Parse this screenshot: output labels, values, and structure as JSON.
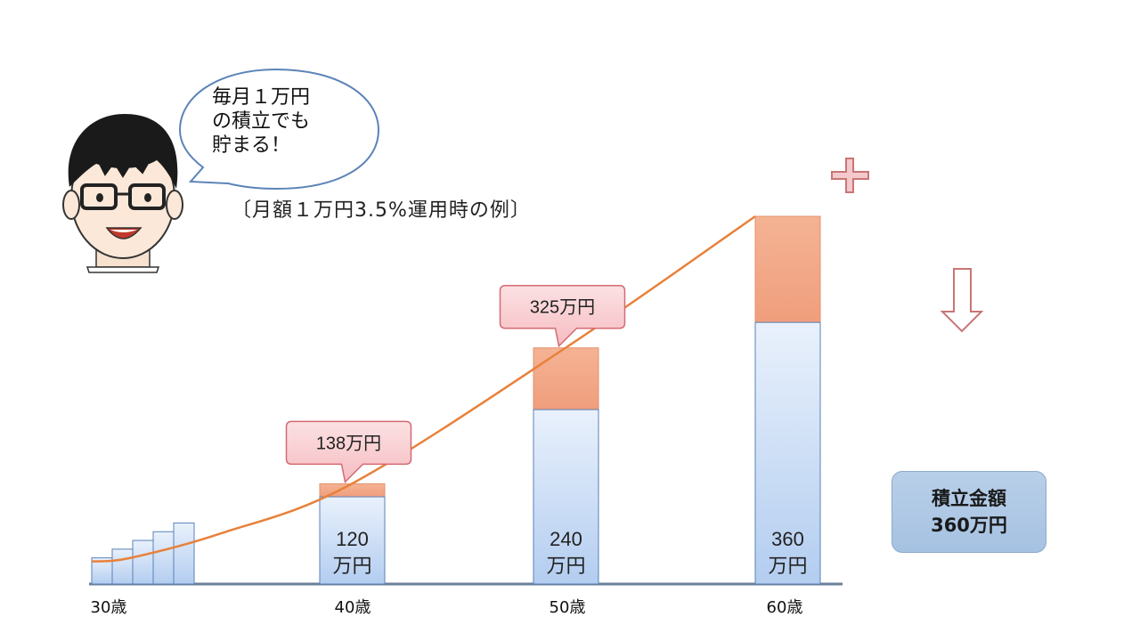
{
  "speech_bubble": {
    "text": "毎月１万円\nの積立でも\n貯まる！"
  },
  "caption": "〔月額１万円3.5%運用時の例〕",
  "summary_box": {
    "line1": "積立金額",
    "line2": "360万円"
  },
  "colors": {
    "principal_bar": "#c9dcf5",
    "gain_bar": "#f2a888",
    "curve": "#e8813a",
    "callout_fill": "#f9d0d3",
    "callout_stroke": "#d46a72",
    "axis": "#6b7f99",
    "plus_sign": "#c97575",
    "down_arrow": "#c97575"
  },
  "icons": {
    "person": "person-with-glasses-icon",
    "plus": "plus-icon",
    "down_arrow": "down-arrow-icon"
  },
  "chart_data": {
    "type": "bar",
    "stacked": true,
    "unit": "万円",
    "ylim": [
      0,
      500
    ],
    "x_tick_labels": [
      "30歳",
      "40歳",
      "50歳",
      "60歳"
    ],
    "small_bars": [
      {
        "principal": 36
      },
      {
        "principal": 48
      },
      {
        "principal": 60
      },
      {
        "principal": 72
      },
      {
        "principal": 84
      }
    ],
    "main_bars": [
      {
        "age_label": "40歳",
        "principal": 120,
        "total": 138,
        "principal_label_num": "120",
        "principal_label_unit": "万円",
        "total_label": "138万円"
      },
      {
        "age_label": "50歳",
        "principal": 240,
        "total": 325,
        "principal_label_num": "240",
        "principal_label_unit": "万円",
        "total_label": "325万円"
      },
      {
        "age_label": "60歳",
        "principal": 360,
        "total": 506,
        "principal_label_num": "360",
        "principal_label_unit": "万円",
        "total_label": ""
      }
    ],
    "curve": {
      "x_years": [
        0,
        1.5,
        5,
        10,
        20,
        30
      ],
      "values": [
        31,
        36,
        70,
        138,
        325,
        506
      ]
    }
  }
}
